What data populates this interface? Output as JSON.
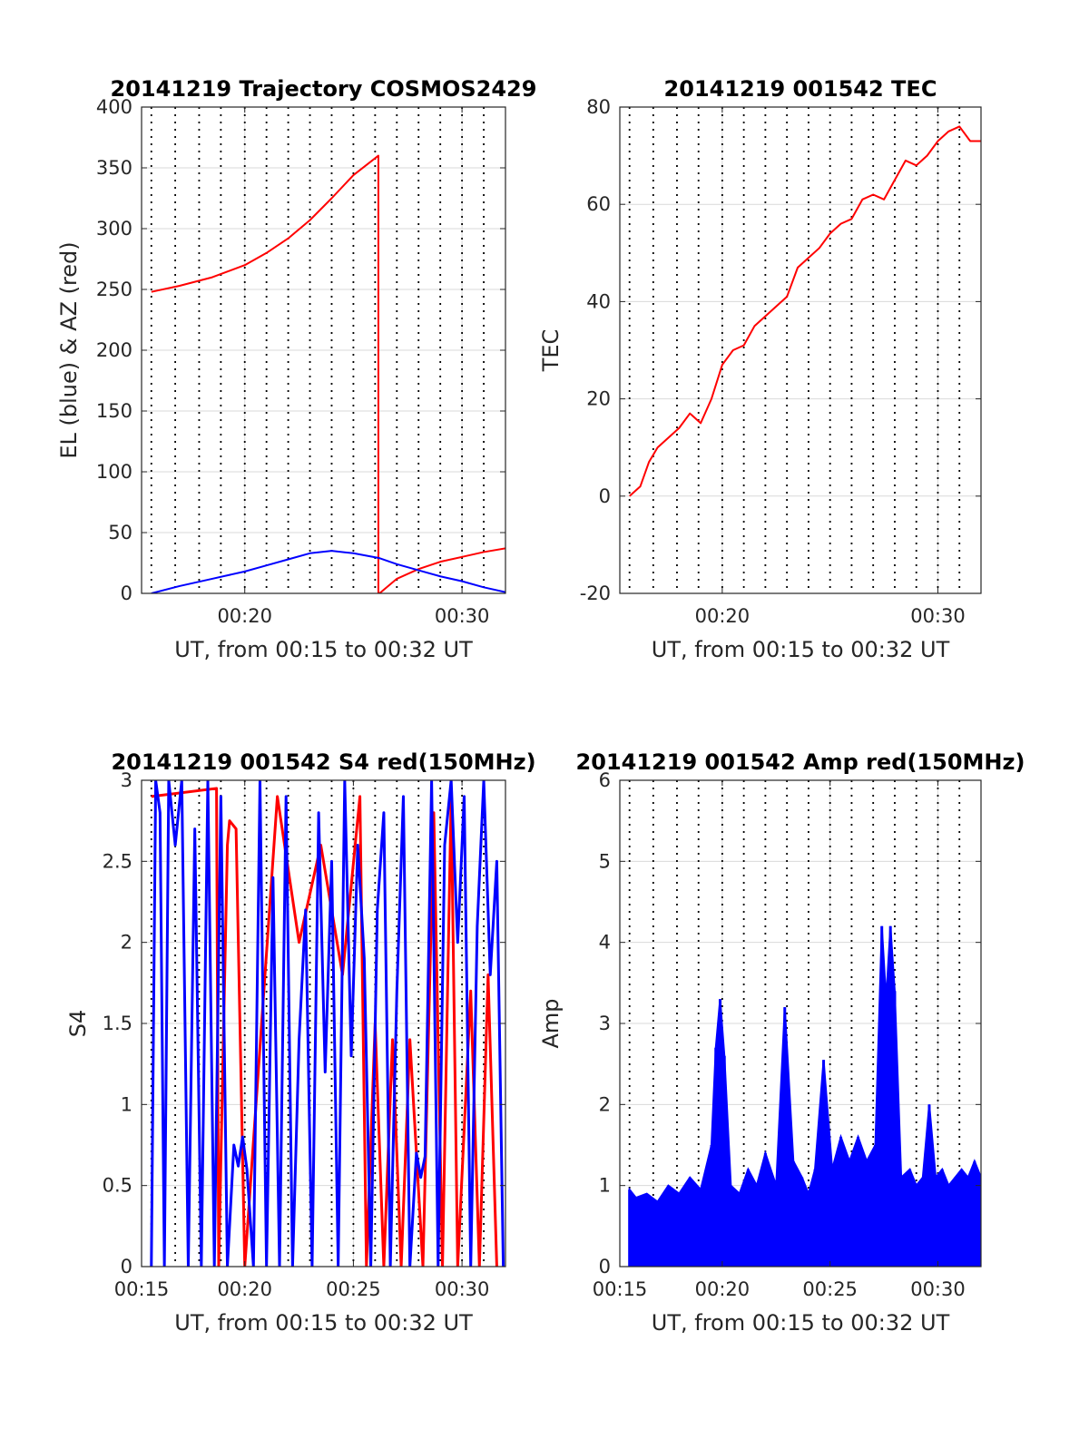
{
  "colors": {
    "red": "#ff0000",
    "blue": "#0000ff",
    "grid": "#d9d9d9",
    "vline": "#000000"
  },
  "chart_data": [
    {
      "type": "line",
      "title": "20141219 Trajectory COSMOS2429",
      "xlabel": "UT, from 00:15 to 00:32 UT",
      "ylabel": "EL (blue) & AZ (red)",
      "xlim": [
        15.25,
        32
      ],
      "ylim": [
        0,
        400
      ],
      "yticks": [
        0,
        50,
        100,
        150,
        200,
        250,
        300,
        350,
        400
      ],
      "yticklabels": [
        "0",
        "50",
        "100",
        "150",
        "200",
        "250",
        "300",
        "350",
        "400"
      ],
      "xticks": [
        20,
        30
      ],
      "xticklabels": [
        "00:20",
        "00:30"
      ],
      "series": [
        {
          "color": "red",
          "x": [
            15.7,
            17,
            18.5,
            20,
            21,
            22,
            23,
            24,
            25,
            26.15,
            26.15,
            26.2,
            27,
            28,
            29,
            30,
            31,
            32
          ],
          "y": [
            248,
            253,
            260,
            270,
            280,
            292,
            307,
            325,
            344,
            360,
            0,
            0,
            12,
            20,
            26,
            30,
            34,
            37
          ]
        },
        {
          "color": "blue",
          "x": [
            15.7,
            17,
            18.5,
            20,
            21,
            22,
            23,
            24,
            25,
            26.2,
            27,
            28,
            29,
            30,
            31,
            32
          ],
          "y": [
            0,
            6,
            12,
            18,
            23,
            28,
            33,
            35,
            33,
            29,
            24,
            19,
            14,
            10,
            5,
            1
          ]
        }
      ]
    },
    {
      "type": "line",
      "title": "20141219 001542 TEC",
      "xlabel": "UT, from 00:15 to 00:32 UT",
      "ylabel": "TEC",
      "xlim": [
        15.25,
        32
      ],
      "ylim": [
        -20,
        80
      ],
      "yticks": [
        -20,
        0,
        20,
        40,
        60,
        80
      ],
      "yticklabels": [
        "-20",
        "0",
        "20",
        "40",
        "60",
        "80"
      ],
      "xticks": [
        20,
        30
      ],
      "xticklabels": [
        "00:20",
        "00:30"
      ],
      "series": [
        {
          "color": "red",
          "x": [
            15.7,
            16.2,
            16.6,
            17,
            17.5,
            18,
            18.5,
            19,
            19.5,
            20,
            20.5,
            21,
            21.5,
            22,
            22.5,
            23,
            23.5,
            24,
            24.5,
            25,
            25.5,
            26,
            26.5,
            27,
            27.5,
            28,
            28.5,
            29,
            29.5,
            30,
            30.5,
            31,
            31.5,
            32
          ],
          "y": [
            0,
            2,
            7,
            10,
            12,
            14,
            17,
            15,
            20,
            27,
            30,
            31,
            35,
            37,
            39,
            41,
            47,
            49,
            51,
            54,
            56,
            57,
            61,
            62,
            61,
            65,
            69,
            68,
            70,
            73,
            75,
            76,
            73,
            73
          ]
        }
      ]
    },
    {
      "type": "line",
      "title": "20141219 001542 S4 red(150MHz)",
      "xlabel": "UT, from 00:15 to 00:32 UT",
      "ylabel": "S4",
      "xlim": [
        15.25,
        32
      ],
      "ylim": [
        0,
        3
      ],
      "yticks": [
        0,
        0.5,
        1,
        1.5,
        2,
        2.5,
        3
      ],
      "yticklabels": [
        "0",
        "0.5",
        "1",
        "1.5",
        "2",
        "2.5",
        "3"
      ],
      "xticks": [
        15.25,
        20,
        25,
        30
      ],
      "xticklabels": [
        "00:15",
        "00:20",
        "00:25",
        "00:30"
      ],
      "series": [
        {
          "color": "red",
          "x": [
            15.7,
            18.7,
            18.8,
            19.2,
            19.3,
            19.6,
            20,
            21.5,
            22.5,
            23.5,
            24.5,
            25.3,
            25.6,
            26,
            26.4,
            26.8,
            27.2,
            27.6,
            28.2,
            28.7,
            29.1,
            29.5,
            29.8,
            30.4,
            30.8,
            31.2,
            31.6
          ],
          "y": [
            2.9,
            2.95,
            0,
            2.6,
            2.75,
            2.7,
            0,
            2.9,
            2.0,
            2.6,
            1.8,
            2.9,
            0,
            1.5,
            0,
            1.4,
            0,
            1.4,
            0,
            2.8,
            0,
            2.9,
            0,
            1.7,
            0,
            1.8,
            0
          ]
        },
        {
          "color": "blue",
          "x": [
            15.7,
            15.9,
            16.1,
            16.3,
            16.5,
            16.8,
            17.1,
            17.4,
            17.7,
            18.0,
            18.3,
            18.6,
            18.9,
            19.2,
            19.5,
            19.7,
            19.9,
            20.1,
            20.4,
            20.7,
            21.0,
            21.3,
            21.6,
            21.9,
            22.2,
            22.5,
            22.8,
            23.1,
            23.4,
            23.7,
            24.0,
            24.3,
            24.6,
            24.9,
            25.2,
            25.5,
            25.8,
            26.1,
            26.4,
            26.7,
            27.0,
            27.3,
            27.6,
            27.9,
            28.1,
            28.3,
            28.6,
            28.9,
            29.2,
            29.5,
            29.8,
            30.1,
            30.4,
            30.7,
            31.0,
            31.3,
            31.6,
            31.9
          ],
          "y": [
            0,
            3,
            2.8,
            0,
            3,
            2.6,
            3,
            0,
            2.7,
            0,
            3,
            0,
            2.9,
            0,
            0.75,
            0.62,
            0.8,
            0.6,
            0,
            3,
            0,
            2.4,
            0,
            2.9,
            0,
            1.4,
            2.2,
            0,
            2.8,
            1.2,
            2.5,
            0,
            3,
            1.3,
            2.6,
            1.9,
            0,
            2.2,
            2.8,
            0,
            1.7,
            2.9,
            0,
            0.7,
            0.55,
            0.68,
            3,
            0,
            2.6,
            3,
            2.0,
            2.9,
            0,
            2.1,
            3,
            1.8,
            2.5,
            0
          ]
        }
      ]
    },
    {
      "type": "bar",
      "title": "20141219 001542 Amp red(150MHz)",
      "xlabel": "UT, from 00:15 to 00:32 UT",
      "ylabel": "Amp",
      "xlim": [
        15.25,
        32
      ],
      "ylim": [
        0,
        6
      ],
      "yticks": [
        0,
        1,
        2,
        3,
        4,
        5,
        6
      ],
      "yticklabels": [
        "0",
        "1",
        "2",
        "3",
        "4",
        "5",
        "6"
      ],
      "xticks": [
        15.25,
        20,
        25,
        30
      ],
      "xticklabels": [
        "00:15",
        "00:20",
        "00:25",
        "00:30"
      ],
      "series": [
        {
          "color": "blue",
          "x": [
            15.7,
            16.0,
            16.5,
            17.0,
            17.5,
            18.0,
            18.5,
            19.0,
            19.5,
            19.7,
            19.9,
            20.1,
            20.4,
            20.8,
            21.2,
            21.6,
            22.0,
            22.5,
            22.9,
            23.3,
            23.7,
            24.0,
            24.3,
            24.7,
            25.1,
            25.5,
            25.9,
            26.3,
            26.7,
            27.1,
            27.4,
            27.6,
            27.8,
            28.0,
            28.3,
            28.7,
            29.0,
            29.3,
            29.6,
            29.9,
            30.2,
            30.5,
            30.8,
            31.1,
            31.4,
            31.7,
            32.0
          ],
          "y": [
            0.95,
            0.85,
            0.9,
            0.8,
            1.0,
            0.9,
            1.1,
            0.95,
            1.5,
            2.7,
            3.3,
            2.6,
            1.0,
            0.9,
            1.2,
            1.0,
            1.4,
            1.0,
            3.2,
            1.3,
            1.1,
            0.9,
            1.2,
            2.55,
            1.2,
            1.6,
            1.3,
            1.6,
            1.3,
            1.5,
            4.2,
            3.3,
            4.2,
            3.4,
            1.1,
            1.2,
            1.0,
            1.1,
            2.0,
            1.1,
            1.2,
            1.0,
            1.1,
            1.2,
            1.1,
            1.3,
            1.1
          ]
        }
      ]
    }
  ]
}
